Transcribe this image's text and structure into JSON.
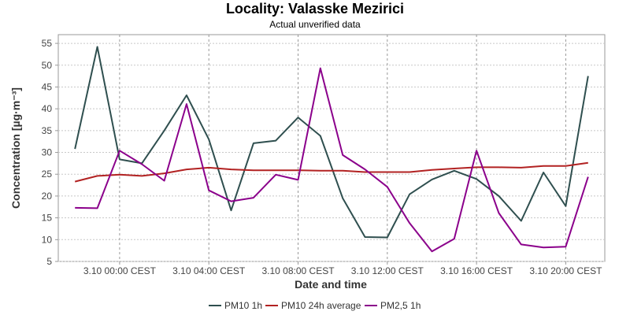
{
  "chart_data": {
    "type": "line",
    "title": "Locality: Valasske Mezirici",
    "subtitle": "Actual unverified data",
    "xlabel": "Date and time",
    "ylabel": "Concentration [µg·m⁻³]",
    "ylim": [
      5,
      57
    ],
    "y_ticks": [
      5,
      10,
      15,
      20,
      25,
      30,
      35,
      40,
      45,
      50,
      55
    ],
    "x_range_hours": [
      -2.75,
      21.75
    ],
    "x_ticks": [
      {
        "hour": 0,
        "label": "3.10 00:00 CEST"
      },
      {
        "hour": 4,
        "label": "3.10 04:00 CEST"
      },
      {
        "hour": 8,
        "label": "3.10 08:00 CEST"
      },
      {
        "hour": 12,
        "label": "3.10 12:00 CEST"
      },
      {
        "hour": 16,
        "label": "3.10 16:00 CEST"
      },
      {
        "hour": 20,
        "label": "3.10 20:00 CEST"
      }
    ],
    "x_hours": [
      -2,
      -1,
      0,
      1,
      2,
      3,
      4,
      5,
      6,
      7,
      8,
      9,
      10,
      11,
      12,
      13,
      14,
      15,
      16,
      17,
      18,
      19,
      20,
      21
    ],
    "grid": true,
    "legend_position": "bottom",
    "series": [
      {
        "name": "PM10 1h",
        "color": "#2f4f4f",
        "values": [
          30.8,
          54.2,
          28.4,
          27.5,
          35.0,
          43.1,
          33.0,
          16.7,
          32.1,
          32.7,
          38.0,
          33.8,
          19.5,
          10.6,
          10.5,
          20.4,
          23.8,
          25.8,
          23.9,
          20.0,
          14.3,
          25.4,
          17.7,
          47.5
        ]
      },
      {
        "name": "PM10 24h average",
        "color": "#b22222",
        "values": [
          23.3,
          24.6,
          24.9,
          24.6,
          25.2,
          26.1,
          26.5,
          26.1,
          25.9,
          25.9,
          25.9,
          25.8,
          25.8,
          25.5,
          25.5,
          25.5,
          26.0,
          26.3,
          26.6,
          26.6,
          26.5,
          26.9,
          26.9,
          27.6
        ]
      },
      {
        "name": "PM2,5 1h",
        "color": "#8b008b",
        "values": [
          17.3,
          17.2,
          30.4,
          27.3,
          23.5,
          41.1,
          21.3,
          18.8,
          19.6,
          24.9,
          23.7,
          49.3,
          29.4,
          26.1,
          22.1,
          13.8,
          7.3,
          10.2,
          30.4,
          16.1,
          8.9,
          8.2,
          8.4,
          24.4
        ]
      }
    ]
  }
}
